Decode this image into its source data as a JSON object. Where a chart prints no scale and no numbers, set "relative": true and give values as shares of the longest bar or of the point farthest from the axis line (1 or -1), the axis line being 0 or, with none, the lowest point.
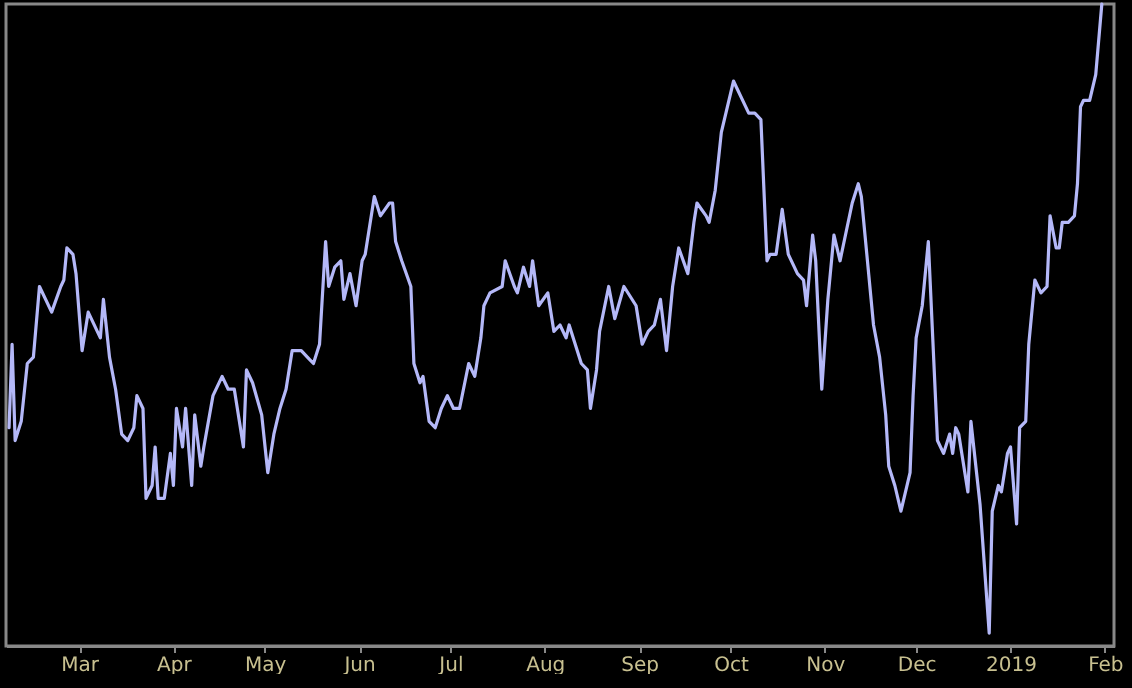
{
  "chart_data": {
    "type": "line",
    "relative": true,
    "grid": false,
    "marker": "none",
    "line_style": "solid",
    "xlim": [
      "2018-02-05",
      "2019-02-04"
    ],
    "xticks": [
      {
        "value": "2018-03-01",
        "label": "Mar"
      },
      {
        "value": "2018-04-01",
        "label": "Apr"
      },
      {
        "value": "2018-05-01",
        "label": "May"
      },
      {
        "value": "2018-06-01",
        "label": "Jun"
      },
      {
        "value": "2018-07-01",
        "label": "Jul"
      },
      {
        "value": "2018-08-01",
        "label": "Aug"
      },
      {
        "value": "2018-09-01",
        "label": "Sep"
      },
      {
        "value": "2018-10-01",
        "label": "Oct"
      },
      {
        "value": "2018-11-01",
        "label": "Nov"
      },
      {
        "value": "2018-12-01",
        "label": "Dec"
      },
      {
        "value": "2019-01-01",
        "label": "2019"
      },
      {
        "value": "2019-02-01",
        "label": "Feb"
      }
    ],
    "x": [
      "2018-02-06",
      "2018-02-07",
      "2018-02-08",
      "2018-02-10",
      "2018-02-12",
      "2018-02-14",
      "2018-02-16",
      "2018-02-20",
      "2018-02-23",
      "2018-02-24",
      "2018-02-25",
      "2018-02-27",
      "2018-02-28",
      "2018-03-02",
      "2018-03-04",
      "2018-03-08",
      "2018-03-09",
      "2018-03-11",
      "2018-03-13",
      "2018-03-15",
      "2018-03-17",
      "2018-03-19",
      "2018-03-20",
      "2018-03-22",
      "2018-03-23",
      "2018-03-25",
      "2018-03-26",
      "2018-03-27",
      "2018-03-29",
      "2018-03-31",
      "2018-04-01",
      "2018-04-02",
      "2018-04-04",
      "2018-04-05",
      "2018-04-07",
      "2018-04-08",
      "2018-04-10",
      "2018-04-11",
      "2018-04-14",
      "2018-04-17",
      "2018-04-19",
      "2018-04-21",
      "2018-04-24",
      "2018-04-25",
      "2018-04-27",
      "2018-04-30",
      "2018-05-02",
      "2018-05-04",
      "2018-05-06",
      "2018-05-08",
      "2018-05-10",
      "2018-05-12",
      "2018-05-13",
      "2018-05-15",
      "2018-05-17",
      "2018-05-19",
      "2018-05-21",
      "2018-05-22",
      "2018-05-24",
      "2018-05-26",
      "2018-05-27",
      "2018-05-29",
      "2018-05-31",
      "2018-06-02",
      "2018-06-03",
      "2018-06-06",
      "2018-06-08",
      "2018-06-11",
      "2018-06-12",
      "2018-06-13",
      "2018-06-15",
      "2018-06-18",
      "2018-06-19",
      "2018-06-21",
      "2018-06-22",
      "2018-06-24",
      "2018-06-26",
      "2018-06-28",
      "2018-06-30",
      "2018-07-02",
      "2018-07-04",
      "2018-07-07",
      "2018-07-09",
      "2018-07-11",
      "2018-07-12",
      "2018-07-14",
      "2018-07-18",
      "2018-07-19",
      "2018-07-22",
      "2018-07-23",
      "2018-07-25",
      "2018-07-27",
      "2018-07-28",
      "2018-07-30",
      "2018-08-02",
      "2018-08-04",
      "2018-08-06",
      "2018-08-08",
      "2018-08-09",
      "2018-08-11",
      "2018-08-13",
      "2018-08-15",
      "2018-08-16",
      "2018-08-18",
      "2018-08-19",
      "2018-08-22",
      "2018-08-24",
      "2018-08-27",
      "2018-08-31",
      "2018-09-02",
      "2018-09-04",
      "2018-09-06",
      "2018-09-08",
      "2018-09-10",
      "2018-09-12",
      "2018-09-14",
      "2018-09-17",
      "2018-09-19",
      "2018-09-20",
      "2018-09-23",
      "2018-09-24",
      "2018-09-26",
      "2018-09-28",
      "2018-10-02",
      "2018-10-03",
      "2018-10-07",
      "2018-10-09",
      "2018-10-11",
      "2018-10-13",
      "2018-10-14",
      "2018-10-16",
      "2018-10-18",
      "2018-10-20",
      "2018-10-23",
      "2018-10-25",
      "2018-10-26",
      "2018-10-28",
      "2018-10-29",
      "2018-10-31",
      "2018-11-02",
      "2018-11-04",
      "2018-11-06",
      "2018-11-10",
      "2018-11-12",
      "2018-11-13",
      "2018-11-15",
      "2018-11-17",
      "2018-11-19",
      "2018-11-21",
      "2018-11-22",
      "2018-11-24",
      "2018-11-26",
      "2018-11-29",
      "2018-11-30",
      "2018-12-01",
      "2018-12-03",
      "2018-12-05",
      "2018-12-08",
      "2018-12-10",
      "2018-12-12",
      "2018-12-13",
      "2018-12-14",
      "2018-12-15",
      "2018-12-18",
      "2018-12-19",
      "2018-12-22",
      "2018-12-25",
      "2018-12-26",
      "2018-12-28",
      "2018-12-29",
      "2018-12-31",
      "2019-01-01",
      "2019-01-03",
      "2019-01-04",
      "2019-01-06",
      "2019-01-07",
      "2019-01-09",
      "2019-01-11",
      "2019-01-13",
      "2019-01-14",
      "2019-01-16",
      "2019-01-17",
      "2019-01-18",
      "2019-01-20",
      "2019-01-22",
      "2019-01-23",
      "2019-01-24",
      "2019-01-25",
      "2019-01-27",
      "2019-01-29",
      "2019-01-31"
    ],
    "series": [
      {
        "color": "#b4b8f8",
        "values": [
          0.34,
          0.47,
          0.32,
          0.35,
          0.44,
          0.45,
          0.56,
          0.52,
          0.56,
          0.57,
          0.62,
          0.61,
          0.58,
          0.46,
          0.52,
          0.48,
          0.54,
          0.45,
          0.4,
          0.33,
          0.32,
          0.34,
          0.39,
          0.37,
          0.23,
          0.25,
          0.31,
          0.23,
          0.23,
          0.3,
          0.25,
          0.37,
          0.31,
          0.37,
          0.25,
          0.36,
          0.28,
          0.31,
          0.39,
          0.42,
          0.4,
          0.4,
          0.31,
          0.43,
          0.41,
          0.36,
          0.27,
          0.33,
          0.37,
          0.4,
          0.46,
          0.46,
          0.46,
          0.45,
          0.44,
          0.47,
          0.63,
          0.56,
          0.59,
          0.6,
          0.54,
          0.58,
          0.53,
          0.6,
          0.61,
          0.7,
          0.67,
          0.69,
          0.69,
          0.63,
          0.6,
          0.56,
          0.44,
          0.41,
          0.42,
          0.35,
          0.34,
          0.37,
          0.39,
          0.37,
          0.37,
          0.44,
          0.42,
          0.48,
          0.53,
          0.55,
          0.56,
          0.6,
          0.56,
          0.55,
          0.59,
          0.56,
          0.6,
          0.53,
          0.55,
          0.49,
          0.5,
          0.48,
          0.5,
          0.47,
          0.44,
          0.43,
          0.37,
          0.43,
          0.49,
          0.56,
          0.51,
          0.56,
          0.53,
          0.47,
          0.49,
          0.5,
          0.54,
          0.46,
          0.56,
          0.62,
          0.58,
          0.66,
          0.69,
          0.67,
          0.66,
          0.71,
          0.8,
          0.88,
          0.87,
          0.83,
          0.83,
          0.82,
          0.6,
          0.61,
          0.61,
          0.68,
          0.61,
          0.58,
          0.57,
          0.53,
          0.64,
          0.6,
          0.4,
          0.54,
          0.64,
          0.6,
          0.69,
          0.72,
          0.7,
          0.6,
          0.5,
          0.45,
          0.36,
          0.28,
          0.25,
          0.21,
          0.27,
          0.39,
          0.48,
          0.53,
          0.63,
          0.32,
          0.3,
          0.33,
          0.3,
          0.34,
          0.33,
          0.24,
          0.35,
          0.22,
          0.02,
          0.21,
          0.25,
          0.24,
          0.3,
          0.31,
          0.19,
          0.34,
          0.35,
          0.47,
          0.57,
          0.55,
          0.56,
          0.67,
          0.62,
          0.62,
          0.66,
          0.66,
          0.67,
          0.72,
          0.84,
          0.85,
          0.85,
          0.89,
          1.0
        ]
      }
    ]
  }
}
